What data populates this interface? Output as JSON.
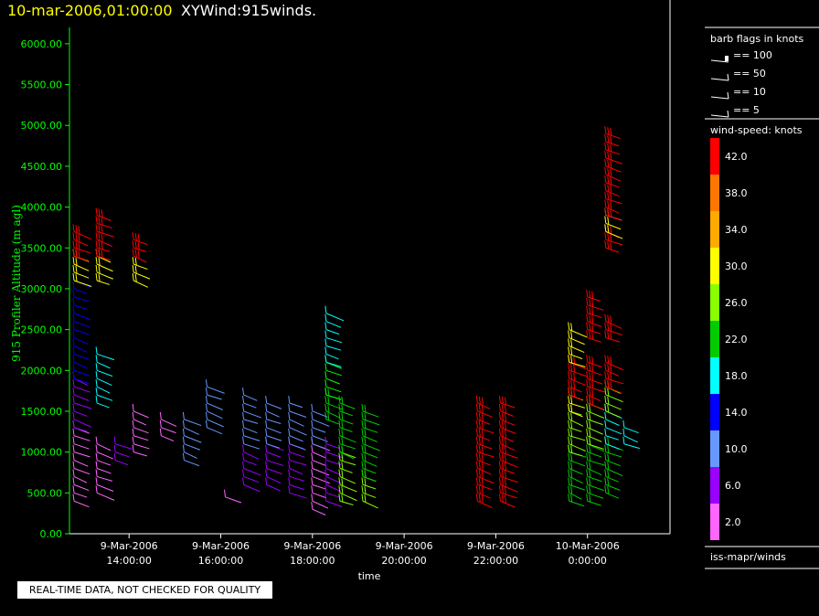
{
  "header": {
    "datetime": "10-mar-2006,01:00:00",
    "product": "XYWind:915winds."
  },
  "footer": {
    "quality_note": "REAL-TIME DATA, NOT CHECKED FOR QUALITY"
  },
  "colors": {
    "background": "#000000",
    "axis": "#00ff00",
    "title_date": "#ffff00"
  },
  "legend": {
    "barb_title": "barb flags in knots",
    "barbs": [
      "== 100",
      "== 50",
      "== 10",
      "== 5"
    ],
    "speed_title": "wind-speed: knots",
    "speed_levels": [
      {
        "label": "42.0",
        "color": "#ff0000"
      },
      {
        "label": "38.0",
        "color": "#ff7700"
      },
      {
        "label": "34.0",
        "color": "#ffaa00"
      },
      {
        "label": "30.0",
        "color": "#ffff00"
      },
      {
        "label": "26.0",
        "color": "#88ff00"
      },
      {
        "label": "22.0",
        "color": "#00cc00"
      },
      {
        "label": "18.0",
        "color": "#00ffff"
      },
      {
        "label": "14.0",
        "color": "#0000ff"
      },
      {
        "label": "10.0",
        "color": "#6699ff"
      },
      {
        "label": "6.0",
        "color": "#9900ff"
      },
      {
        "label": "2.0",
        "color": "#ff66ff"
      }
    ],
    "source": "iss-mapr/winds"
  },
  "chart_data": {
    "type": "scatter",
    "xlabel": "time",
    "ylabel": "915 Profiler Altitude (m agl)",
    "xlim_hours": [
      12.7,
      25.8
    ],
    "ylim": [
      0,
      6200
    ],
    "yticks": [
      "0.00",
      "500.00",
      "1000.00",
      "1500.00",
      "2000.00",
      "2500.00",
      "3000.00",
      "3500.00",
      "4000.00",
      "4500.00",
      "5000.00",
      "5500.00",
      "6000.00"
    ],
    "xticks": [
      {
        "hour": 14,
        "date": "9-Mar-2006",
        "time": "14:00:00"
      },
      {
        "hour": 16,
        "date": "9-Mar-2006",
        "time": "16:00:00"
      },
      {
        "hour": 18,
        "date": "9-Mar-2006",
        "time": "18:00:00"
      },
      {
        "hour": 20,
        "date": "9-Mar-2006",
        "time": "20:00:00"
      },
      {
        "hour": 22,
        "date": "9-Mar-2006",
        "time": "22:00:00"
      },
      {
        "hour": 24,
        "date": "10-Mar-2006",
        "time": "0:00:00"
      }
    ],
    "profiles": [
      {
        "time_h": 12.8,
        "ranges": [
          [
            400,
            1300,
            "#ff66ff"
          ],
          [
            1300,
            1900,
            "#9900ff"
          ],
          [
            1900,
            3100,
            "#0000ff"
          ],
          [
            3100,
            3400,
            "#ffff00"
          ],
          [
            3400,
            3700,
            "#ff0000"
          ]
        ]
      },
      {
        "time_h": 13.3,
        "ranges": [
          [
            500,
            1100,
            "#ff66ff"
          ],
          [
            1600,
            2200,
            "#00ffff"
          ],
          [
            3100,
            3400,
            "#ffff00"
          ],
          [
            3400,
            3900,
            "#ff0000"
          ]
        ]
      },
      {
        "time_h": 13.7,
        "ranges": [
          [
            900,
            1100,
            "#9900ff"
          ]
        ]
      },
      {
        "time_h": 14.1,
        "ranges": [
          [
            1000,
            1500,
            "#ff66ff"
          ],
          [
            3100,
            3300,
            "#ffff00"
          ],
          [
            3400,
            3600,
            "#ff0000"
          ]
        ]
      },
      {
        "time_h": 14.7,
        "ranges": [
          [
            1200,
            1400,
            "#ff66ff"
          ]
        ]
      },
      {
        "time_h": 15.2,
        "ranges": [
          [
            900,
            1400,
            "#6699ff"
          ]
        ]
      },
      {
        "time_h": 15.7,
        "ranges": [
          [
            1300,
            1800,
            "#6699ff"
          ]
        ]
      },
      {
        "time_h": 16.1,
        "ranges": [
          [
            450,
            460,
            "#ff66ff"
          ]
        ]
      },
      {
        "time_h": 16.5,
        "ranges": [
          [
            600,
            1000,
            "#9900ff"
          ],
          [
            1100,
            1700,
            "#6699ff"
          ]
        ]
      },
      {
        "time_h": 17.0,
        "ranges": [
          [
            600,
            1100,
            "#9900ff"
          ],
          [
            1100,
            1600,
            "#6699ff"
          ]
        ]
      },
      {
        "time_h": 17.5,
        "ranges": [
          [
            500,
            1100,
            "#9900ff"
          ],
          [
            1100,
            1600,
            "#6699ff"
          ]
        ]
      },
      {
        "time_h": 18.0,
        "ranges": [
          [
            300,
            1100,
            "#ff66ff"
          ],
          [
            1100,
            1500,
            "#6699ff"
          ]
        ]
      },
      {
        "time_h": 18.3,
        "ranges": [
          [
            400,
            1100,
            "#9900ff"
          ],
          [
            1400,
            1700,
            "#00cc00"
          ],
          [
            1700,
            2100,
            "#00ff00"
          ],
          [
            2100,
            2700,
            "#00ffff"
          ]
        ]
      },
      {
        "time_h": 18.6,
        "ranges": [
          [
            400,
            1000,
            "#88ff00"
          ],
          [
            1000,
            1600,
            "#00cc00"
          ]
        ]
      },
      {
        "time_h": 19.1,
        "ranges": [
          [
            400,
            700,
            "#88ff00"
          ],
          [
            700,
            1500,
            "#00cc00"
          ]
        ]
      },
      {
        "time_h": 21.6,
        "ranges": [
          [
            400,
            1600,
            "#ff0000"
          ]
        ]
      },
      {
        "time_h": 22.1,
        "ranges": [
          [
            400,
            1600,
            "#ff0000"
          ]
        ]
      },
      {
        "time_h": 23.6,
        "ranges": [
          [
            400,
            1000,
            "#00cc00"
          ],
          [
            1000,
            1500,
            "#88ff00"
          ],
          [
            1500,
            1700,
            "#ffff00"
          ],
          [
            1700,
            2100,
            "#ff0000"
          ],
          [
            2100,
            2500,
            "#ffff00"
          ]
        ]
      },
      {
        "time_h": 24.0,
        "ranges": [
          [
            400,
            1100,
            "#00cc00"
          ],
          [
            1100,
            1600,
            "#88ff00"
          ],
          [
            1600,
            2100,
            "#ff0000"
          ],
          [
            2400,
            2900,
            "#ff0000"
          ]
        ]
      },
      {
        "time_h": 24.4,
        "ranges": [
          [
            500,
            1100,
            "#00cc00"
          ],
          [
            1100,
            1500,
            "#00ffff"
          ],
          [
            1500,
            1800,
            "#88ff00"
          ],
          [
            1800,
            2100,
            "#ff0000"
          ],
          [
            2400,
            2600,
            "#ff0000"
          ],
          [
            3500,
            3700,
            "#ff0000"
          ],
          [
            3700,
            3900,
            "#ffff00"
          ],
          [
            3900,
            4900,
            "#ff0000"
          ]
        ]
      },
      {
        "time_h": 24.8,
        "ranges": [
          [
            1100,
            1300,
            "#00ffff"
          ]
        ]
      }
    ]
  }
}
